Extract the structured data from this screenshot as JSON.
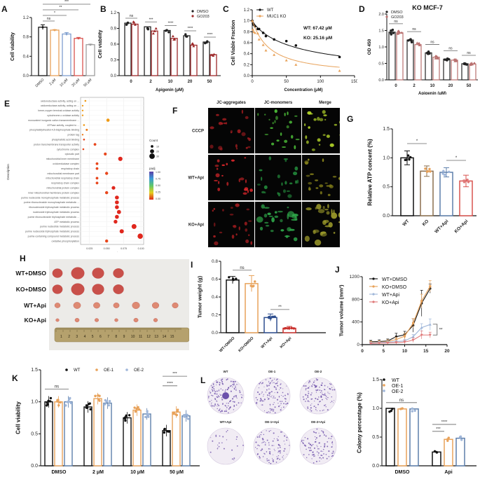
{
  "figure": {
    "panel_labels": [
      "A",
      "B",
      "C",
      "D",
      "E",
      "F",
      "G",
      "H",
      "I",
      "J",
      "K",
      "L"
    ]
  },
  "chart_data": [
    {
      "id": "A",
      "type": "bar",
      "title": "",
      "categories": [
        "DMSO",
        "2 μM",
        "10 μM",
        "20 μM",
        "50 μM"
      ],
      "values": [
        1.0,
        0.94,
        0.86,
        0.77,
        0.64
      ],
      "errors": [
        0.05,
        0.01,
        0.03,
        0.02,
        0.01
      ],
      "colors": [
        "#111111",
        "#e8a25a",
        "#7f9fcf",
        "#d9534f",
        "#9e9e9e"
      ],
      "ylabel": "Cell viability",
      "ylim": [
        0,
        1.2
      ],
      "yticks": [
        0.0,
        0.4,
        0.8,
        1.2
      ],
      "significance": [
        {
          "from": 0,
          "to": 1,
          "label": "ns"
        },
        {
          "from": 0,
          "to": 2,
          "label": "*"
        },
        {
          "from": 0,
          "to": 3,
          "label": "**"
        },
        {
          "from": 0,
          "to": 4,
          "label": "***"
        }
      ]
    },
    {
      "id": "B",
      "type": "bar",
      "categories": [
        "0",
        "2",
        "10",
        "20",
        "50"
      ],
      "series": [
        {
          "name": "DMSO",
          "values": [
            1.0,
            0.93,
            0.86,
            0.76,
            0.64
          ],
          "color": "#222222"
        },
        {
          "name": "GO203",
          "values": [
            0.98,
            0.85,
            0.71,
            0.58,
            0.4
          ],
          "color": "#9e2a2b"
        }
      ],
      "xlabel": "Apigenin (μM)",
      "ylabel": "Cell viability",
      "ylim": [
        0,
        1.2
      ],
      "yticks": [
        0.0,
        0.3,
        0.6,
        0.9,
        1.2
      ],
      "significance": [
        "ns",
        "***",
        "****",
        "****",
        "****"
      ],
      "legend_position": "top-right"
    },
    {
      "id": "C",
      "type": "line",
      "xlabel": "Concentration (μM)",
      "ylabel": "Cell Viable Fraction",
      "xlim": [
        0,
        150
      ],
      "ylim": [
        0,
        1.2
      ],
      "xticks": [
        0,
        50,
        100,
        150
      ],
      "yticks": [
        0.0,
        0.2,
        0.4,
        0.6,
        0.8,
        1.0,
        1.2
      ],
      "series": [
        {
          "name": "WT",
          "color": "#111111",
          "marker": "circle",
          "x": [
            0,
            1,
            2,
            4,
            8,
            10,
            16,
            20,
            32,
            50,
            64,
            128
          ],
          "y": [
            1.0,
            0.95,
            0.93,
            0.9,
            0.85,
            0.85,
            0.78,
            0.72,
            0.66,
            0.63,
            0.55,
            0.34
          ]
        },
        {
          "name": "MUC1 KO",
          "color": "#e8a25a",
          "marker": "triangle",
          "x": [
            0,
            1,
            2,
            4,
            8,
            10,
            16,
            20,
            32,
            50,
            64,
            128
          ],
          "y": [
            1.0,
            0.84,
            0.8,
            0.78,
            0.77,
            0.66,
            0.56,
            0.46,
            0.38,
            0.28,
            0.2,
            0.09
          ]
        }
      ],
      "annotations": [
        "WT: 67.42 μM",
        "KO: 25.16 μM"
      ]
    },
    {
      "id": "D",
      "type": "bar",
      "title": "KO MCF-7",
      "categories": [
        "0",
        "2",
        "10",
        "20",
        "50"
      ],
      "series": [
        {
          "name": "DMSO",
          "values": [
            1.45,
            1.21,
            0.82,
            0.63,
            0.49
          ],
          "color": "#222222"
        },
        {
          "name": "GO203",
          "values": [
            1.43,
            1.07,
            0.69,
            0.6,
            0.48
          ],
          "color": "#b9706f"
        }
      ],
      "xlabel": "Apigenin (μM)",
      "ylabel": "OD 450",
      "ylim": [
        0,
        2.0
      ],
      "yticks": [
        0.0,
        0.5,
        1.0,
        1.5,
        2.0
      ],
      "significance": [
        "ns",
        "ns",
        "ns",
        "ns",
        "ns"
      ]
    },
    {
      "id": "E",
      "type": "scatter",
      "xlabel": "GeneRatio",
      "ylabel": "Description",
      "xticks": [
        0.025,
        0.05,
        0.075,
        0.1
      ],
      "xlim": [
        0.012,
        0.104
      ],
      "categories": [
        "oxidoreductase activity, acting on ...",
        "oxidoreductase activity, acting on ...",
        "heme-copper terminal oxidase activity",
        "cytochrome-c oxidase activity",
        "monovalent inorganic cation transmembrane ...",
        "ATPase activity, coupled to ...",
        "phosphatidylinositol-4,5-bisphosphate binding",
        "protein tag",
        "phosphatidic acid binding",
        "proton transmembrane transporter activity",
        "cytochrome complex",
        "cytosolic part",
        "mitochondrial inner membrane",
        "oxidoreductase complex",
        "respiratory chain",
        "mitochondrial membrane part",
        "mitochondrial respiratory chain",
        "respiratory chain complex",
        "mitochondrial protein complex",
        "inner mitochondrial membrane protein complex",
        "purine nucleoside monophosphate metabolic process",
        "purine ribonucleoside monophosphate metabolic ...",
        "ribonucleoside triphosphate metabolic process",
        "nucleoside triphosphate metabolic process",
        "purine ribonucleoside triphosphate metabolic ...",
        "ATP metabolic process",
        "purine nucleotide metabolic process",
        "purine nucleoside triphosphate metabolic process",
        "purine-containing compound metabolic process",
        "oxidative phosphorylation"
      ],
      "gene_ratio": [
        0.019,
        0.015,
        0.015,
        0.015,
        0.052,
        0.017,
        0.021,
        0.015,
        0.017,
        0.033,
        0.016,
        0.048,
        0.07,
        0.036,
        0.036,
        0.05,
        0.036,
        0.036,
        0.06,
        0.05,
        0.065,
        0.065,
        0.065,
        0.068,
        0.065,
        0.063,
        0.09,
        0.072,
        0.099,
        0.05
      ],
      "count": [
        4,
        3,
        3,
        3,
        14,
        4,
        6,
        3,
        4,
        10,
        4,
        12,
        22,
        10,
        10,
        13,
        10,
        10,
        17,
        13,
        19,
        19,
        19,
        20,
        19,
        18,
        26,
        21,
        29,
        13
      ],
      "padj": [
        0.15,
        0.15,
        0.2,
        0.2,
        0.25,
        0.15,
        0.12,
        0.05,
        0.04,
        0.01,
        0.02,
        0.01,
        0.005,
        0.01,
        0.01,
        0.01,
        0.01,
        0.01,
        0.005,
        0.01,
        0.005,
        0.005,
        0.005,
        0.005,
        0.005,
        0.005,
        0.001,
        0.005,
        0.001,
        0.01
      ],
      "legend": {
        "count_title": "Count",
        "count_values": [
          10,
          20,
          30
        ],
        "padj_title": "padj",
        "padj_ticks": [
          "1.00",
          "0.75",
          "0.50",
          "0.25",
          "0.00"
        ]
      }
    },
    {
      "id": "G",
      "type": "bar",
      "categories": [
        "WT",
        "KO",
        "WT+Api",
        "KO+Api"
      ],
      "values": [
        1.0,
        0.77,
        0.75,
        0.6
      ],
      "errors": [
        0.12,
        0.09,
        0.08,
        0.1
      ],
      "colors": [
        "#111111",
        "#8b6f4e",
        "#5d7fab",
        "#d9534f"
      ],
      "point_colors": [
        "#111111",
        "#e8a25a",
        "#9fb6d9",
        "#e07a7a"
      ],
      "ylabel": "Relative ATP concent (%)",
      "ylim": [
        0,
        1.5
      ],
      "yticks": [
        0.0,
        0.5,
        1.0,
        1.5
      ],
      "significance": [
        {
          "from": 0,
          "to": 1,
          "label": "*"
        },
        {
          "from": 2,
          "to": 3,
          "label": "*"
        }
      ]
    },
    {
      "id": "I",
      "type": "bar",
      "categories": [
        "WT+DMSO",
        "KO+DMSO",
        "WT+Api",
        "KO+Api"
      ],
      "values": [
        0.59,
        0.55,
        0.17,
        0.05
      ],
      "errors": [
        0.04,
        0.09,
        0.04,
        0.02
      ],
      "colors": [
        "#111111",
        "#e8a25a",
        "#2f4f8f",
        "#c9302c"
      ],
      "ylabel": "Tumor weight (g)",
      "ylim": [
        0,
        0.8
      ],
      "yticks": [
        0.0,
        0.2,
        0.4,
        0.6,
        0.8
      ],
      "significance": [
        {
          "from": 0,
          "to": 1,
          "label": "ns"
        },
        {
          "from": 2,
          "to": 3,
          "label": "**"
        }
      ]
    },
    {
      "id": "J",
      "type": "line",
      "ylabel": "Tumor volume (mm³)",
      "xlim": [
        0,
        20
      ],
      "ylim": [
        0,
        1200
      ],
      "xticks": [
        0,
        5,
        10,
        15,
        20
      ],
      "yticks": [
        0,
        400,
        800,
        1200
      ],
      "x": [
        2,
        4,
        6,
        8,
        10,
        12,
        14,
        16
      ],
      "series": [
        {
          "name": "WT+DMSO",
          "color": "#111111",
          "marker": "circle",
          "values": [
            50,
            55,
            65,
            140,
            175,
            340,
            730,
            990
          ],
          "errors": [
            25,
            30,
            35,
            60,
            60,
            120,
            230,
            80
          ]
        },
        {
          "name": "KO+DMSO",
          "color": "#e8a25a",
          "marker": "square",
          "values": [
            40,
            45,
            55,
            90,
            150,
            380,
            770,
            1030
          ],
          "errors": [
            20,
            25,
            30,
            40,
            50,
            80,
            120,
            100
          ]
        },
        {
          "name": "WT+Api",
          "color": "#9fb6d9",
          "marker": "triangle",
          "values": [
            30,
            40,
            45,
            55,
            65,
            140,
            300,
            355
          ],
          "errors": [
            15,
            15,
            20,
            25,
            30,
            40,
            70,
            100
          ]
        },
        {
          "name": "KO+Api",
          "color": "#e07a7a",
          "marker": "triangle-down",
          "values": [
            20,
            25,
            30,
            35,
            45,
            80,
            170,
            170
          ],
          "errors": [
            10,
            15,
            15,
            20,
            30,
            40,
            70,
            50
          ]
        }
      ],
      "annotations": [
        "**"
      ]
    },
    {
      "id": "K",
      "type": "bar",
      "categories": [
        "DMSO",
        "2 μM",
        "10 μM",
        "50 μM"
      ],
      "series": [
        {
          "name": "WT",
          "values": [
            1.0,
            0.92,
            0.75,
            0.55
          ],
          "color": "#111111"
        },
        {
          "name": "OE-1",
          "values": [
            1.0,
            1.05,
            0.87,
            0.84
          ],
          "color": "#e8a25a"
        },
        {
          "name": "OE-2",
          "values": [
            1.0,
            0.98,
            0.81,
            0.78
          ],
          "color": "#5d7fab"
        }
      ],
      "ylabel": "Cell viability",
      "ylim": [
        0,
        1.5
      ],
      "yticks": [
        0.0,
        0.5,
        1.0,
        1.5
      ],
      "legend_position": "top",
      "significance": [
        {
          "group": 0,
          "label": "ns"
        },
        {
          "group": 3,
          "from": 0,
          "to": 1,
          "label": "****"
        },
        {
          "group": 3,
          "from": 0,
          "to": 2,
          "label": "***"
        }
      ]
    },
    {
      "id": "L",
      "type": "bar",
      "categories": [
        "DMSO",
        "Api"
      ],
      "series": [
        {
          "name": "WT",
          "values": [
            1.0,
            0.24
          ],
          "color": "#111111"
        },
        {
          "name": "OE-1",
          "values": [
            0.99,
            0.46
          ],
          "color": "#e8a25a"
        },
        {
          "name": "OE-2",
          "values": [
            0.99,
            0.48
          ],
          "color": "#5d7fab"
        }
      ],
      "ylabel": "Colony percentage (%)",
      "ylim": [
        0,
        1.5
      ],
      "yticks": [
        0.0,
        0.5,
        1.0,
        1.5
      ],
      "significance": [
        {
          "group": 0,
          "label": "ns"
        },
        {
          "group": 1,
          "from": 0,
          "to": 1,
          "label": "***"
        },
        {
          "group": 1,
          "from": 0,
          "to": 2,
          "label": "****"
        }
      ]
    }
  ],
  "panel_F": {
    "column_headers": [
      "JC-aggregates",
      "JC-monomers",
      "Merge"
    ],
    "row_labels": [
      "CCCP",
      "WT+Api",
      "KO+Api"
    ]
  },
  "panel_H": {
    "row_labels": [
      "WT+DMSO",
      "KO+DMSO",
      "WT+Api",
      "KO+Api"
    ],
    "tumor_counts": [
      4,
      4,
      7,
      6
    ],
    "ruler_numbers": [
      "1",
      "2",
      "3",
      "4",
      "5",
      "6",
      "7",
      "8",
      "9",
      "10",
      "11",
      "12",
      "13",
      "14",
      "15"
    ]
  },
  "panel_L_plates": {
    "top_labels": [
      "WT",
      "OE-1",
      "OE-2"
    ],
    "bottom_labels": [
      "WT+Api",
      "OE-1+Api",
      "OE-2+Api"
    ]
  }
}
